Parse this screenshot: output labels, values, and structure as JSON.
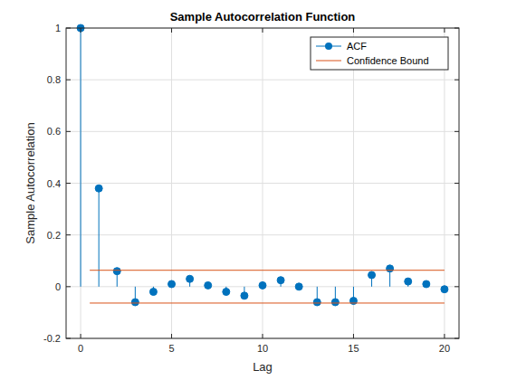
{
  "chart_data": {
    "type": "stem",
    "title": "Sample Autocorrelation Function",
    "x_label": "Lag",
    "y_label": "Sample Autocorrelation",
    "series": [
      {
        "name": "ACF",
        "type": "stem",
        "color": "#0072bd",
        "marker": "circle",
        "x": [
          0,
          1,
          2,
          3,
          4,
          5,
          6,
          7,
          8,
          9,
          10,
          11,
          12,
          13,
          14,
          15,
          16,
          17,
          18,
          19,
          20
        ],
        "values": [
          1,
          0.38,
          0.06,
          -0.06,
          -0.02,
          0.01,
          0.03,
          0.005,
          -0.02,
          -0.035,
          0.005,
          0.025,
          0.0,
          -0.06,
          -0.06,
          -0.055,
          0.045,
          0.07,
          0.02,
          0.01,
          -0.01
        ]
      },
      {
        "name": "Confidence Bound",
        "type": "line",
        "color": "#d95319",
        "line_style": "solid",
        "x": [
          0.5,
          20
        ],
        "values": [
          0.0634,
          0.0634
        ],
        "lower": [
          -0.0634,
          -0.0634
        ]
      }
    ],
    "xlim": [
      -0.8,
      20.8
    ],
    "ylim": [
      -0.2,
      1
    ],
    "xticks": [
      0,
      5,
      10,
      15,
      20
    ],
    "yticks": [
      -0.2,
      0,
      0.2,
      0.4,
      0.6,
      0.8,
      1
    ],
    "grid": true,
    "legend": "northeast"
  }
}
